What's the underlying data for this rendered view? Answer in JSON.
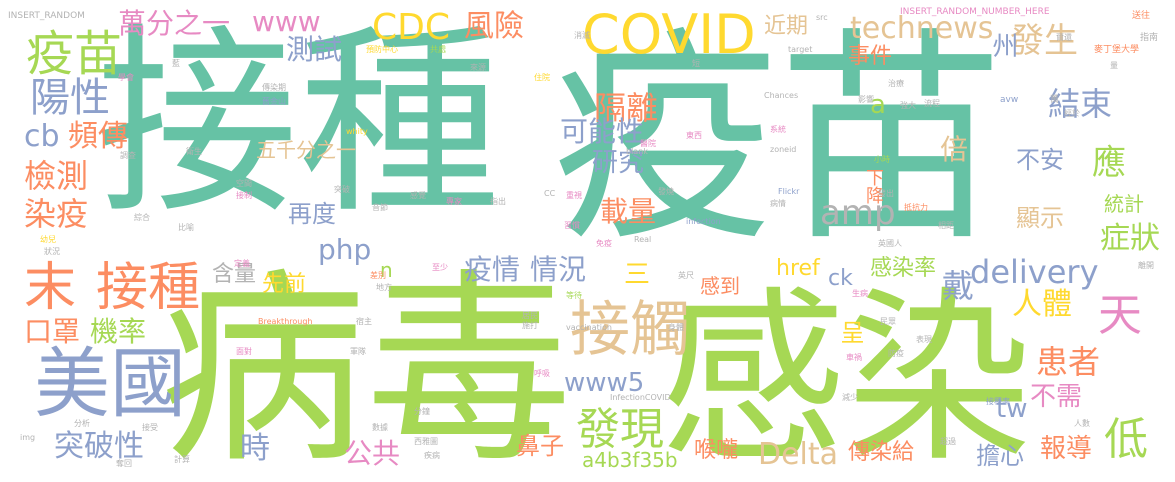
{
  "colors": {
    "teal": "#66c2a5",
    "lime": "#a6d854",
    "orange": "#fc8d62",
    "blue": "#8da0cb",
    "pink": "#e78ac3",
    "yellow": "#ffd92f",
    "tan": "#e5c494",
    "grey": "#b3b3b3"
  },
  "words": [
    {
      "text": "接種",
      "color": "teal"
    },
    {
      "text": "疫苗",
      "color": "teal"
    },
    {
      "text": "病毒",
      "color": "lime"
    },
    {
      "text": "感染",
      "color": "lime"
    },
    {
      "text": "COVID",
      "color": "yellow"
    },
    {
      "text": "美國",
      "color": "blue"
    },
    {
      "text": "末",
      "color": "orange"
    },
    {
      "text": "接種",
      "color": "orange"
    },
    {
      "text": "疫苗",
      "color": "lime"
    },
    {
      "text": "陽性",
      "color": "blue"
    },
    {
      "text": "萬分之一",
      "color": "pink"
    },
    {
      "text": "www",
      "color": "pink"
    },
    {
      "text": "CDC",
      "color": "yellow"
    },
    {
      "text": "風險",
      "color": "orange"
    },
    {
      "text": "technews",
      "color": "tan"
    },
    {
      "text": "近期",
      "color": "tan"
    },
    {
      "text": "發生",
      "color": "tan"
    },
    {
      "text": "事件",
      "color": "orange"
    },
    {
      "text": "州",
      "color": "blue"
    },
    {
      "text": "測試",
      "color": "blue"
    },
    {
      "text": "隔離",
      "color": "orange"
    },
    {
      "text": "a",
      "color": "lime"
    },
    {
      "text": "結束",
      "color": "blue"
    },
    {
      "text": "可能性",
      "color": "blue"
    },
    {
      "text": "cb",
      "color": "blue"
    },
    {
      "text": "頻傳",
      "color": "orange"
    },
    {
      "text": "五千分之一",
      "color": "tan"
    },
    {
      "text": "研究",
      "color": "blue"
    },
    {
      "text": "倍",
      "color": "tan"
    },
    {
      "text": "不安",
      "color": "blue"
    },
    {
      "text": "應",
      "color": "lime"
    },
    {
      "text": "檢測",
      "color": "orange"
    },
    {
      "text": "下降",
      "color": "orange"
    },
    {
      "text": "統計",
      "color": "lime"
    },
    {
      "text": "染疫",
      "color": "orange"
    },
    {
      "text": "再度",
      "color": "blue"
    },
    {
      "text": "載量",
      "color": "orange"
    },
    {
      "text": "amp",
      "color": "grey"
    },
    {
      "text": "顯示",
      "color": "tan"
    },
    {
      "text": "症狀",
      "color": "lime"
    },
    {
      "text": "php",
      "color": "blue"
    },
    {
      "text": "疫情",
      "color": "blue"
    },
    {
      "text": "情況",
      "color": "blue"
    },
    {
      "text": "delivery",
      "color": "blue"
    },
    {
      "text": "戴",
      "color": "blue"
    },
    {
      "text": "三",
      "color": "yellow"
    },
    {
      "text": "天",
      "color": "pink"
    },
    {
      "text": "含量",
      "color": "grey"
    },
    {
      "text": "先前",
      "color": "yellow"
    },
    {
      "text": "n",
      "color": "lime"
    },
    {
      "text": "href",
      "color": "yellow"
    },
    {
      "text": "ck",
      "color": "blue"
    },
    {
      "text": "感染率",
      "color": "lime"
    },
    {
      "text": "人體",
      "color": "yellow"
    },
    {
      "text": "感到",
      "color": "orange"
    },
    {
      "text": "口罩",
      "color": "orange"
    },
    {
      "text": "機率",
      "color": "lime"
    },
    {
      "text": "接觸",
      "color": "tan"
    },
    {
      "text": "呈",
      "color": "yellow"
    },
    {
      "text": "患者",
      "color": "orange"
    },
    {
      "text": "www5",
      "color": "blue"
    },
    {
      "text": "不需",
      "color": "pink"
    },
    {
      "text": "tw",
      "color": "blue"
    },
    {
      "text": "發現",
      "color": "lime"
    },
    {
      "text": "突破性",
      "color": "blue"
    },
    {
      "text": "時",
      "color": "blue"
    },
    {
      "text": "公共",
      "color": "pink"
    },
    {
      "text": "鼻子",
      "color": "orange"
    },
    {
      "text": "a4b3f35b",
      "color": "lime"
    },
    {
      "text": "喉嚨",
      "color": "orange"
    },
    {
      "text": "Delta",
      "color": "tan"
    },
    {
      "text": "傳染給",
      "color": "orange"
    },
    {
      "text": "擔心",
      "color": "blue"
    },
    {
      "text": "報導",
      "color": "orange"
    },
    {
      "text": "低",
      "color": "lime"
    },
    {
      "text": "INSERT_RANDOM",
      "color": "grey"
    },
    {
      "text": "INSERT_RANDOM_NUMBER_HERE",
      "color": "pink"
    },
    {
      "text": "src",
      "color": "grey"
    },
    {
      "text": "送往",
      "color": "orange"
    },
    {
      "text": "指南",
      "color": "grey"
    },
    {
      "text": "預防中心",
      "color": "yellow"
    },
    {
      "text": "共處",
      "color": "lime"
    },
    {
      "text": "消滅",
      "color": "grey"
    },
    {
      "text": "短",
      "color": "grey"
    },
    {
      "text": "target",
      "color": "grey"
    },
    {
      "text": "學會",
      "color": "pink"
    },
    {
      "text": "藍",
      "color": "grey"
    },
    {
      "text": "傳染期",
      "color": "grey"
    },
    {
      "text": "住院",
      "color": "yellow"
    },
    {
      "text": "來源",
      "color": "grey"
    },
    {
      "text": "Chances",
      "color": "grey"
    },
    {
      "text": "影響",
      "color": "grey"
    },
    {
      "text": "avw",
      "color": "blue"
    },
    {
      "text": "萬",
      "color": "grey"
    },
    {
      "text": "麥丁堡大學",
      "color": "orange"
    },
    {
      "text": "量",
      "color": "grey"
    },
    {
      "text": "爾還",
      "color": "grey"
    },
    {
      "text": "治療",
      "color": "grey"
    },
    {
      "text": "舊金山",
      "color": "blue"
    },
    {
      "text": "whity",
      "color": "yellow"
    },
    {
      "text": "流程",
      "color": "grey"
    },
    {
      "text": "強大",
      "color": "grey"
    },
    {
      "text": "經於",
      "color": "grey"
    },
    {
      "text": "blank",
      "color": "grey"
    },
    {
      "text": "醫院",
      "color": "pink"
    },
    {
      "text": "東西",
      "color": "pink"
    },
    {
      "text": "系統",
      "color": "pink"
    },
    {
      "text": "zoneid",
      "color": "grey"
    },
    {
      "text": "Flickr",
      "color": "blue"
    },
    {
      "text": "調查",
      "color": "grey"
    },
    {
      "text": "衛生",
      "color": "grey"
    },
    {
      "text": "小時",
      "color": "lime"
    },
    {
      "text": "發出",
      "color": "grey"
    },
    {
      "text": "空間",
      "color": "grey"
    },
    {
      "text": "突破",
      "color": "grey"
    },
    {
      "text": "專家",
      "color": "pink"
    },
    {
      "text": "指出",
      "color": "grey"
    },
    {
      "text": "CC",
      "color": "grey"
    },
    {
      "text": "重視",
      "color": "pink"
    },
    {
      "text": "發燒",
      "color": "grey"
    },
    {
      "text": "感覺",
      "color": "grey"
    },
    {
      "text": "病情",
      "color": "grey"
    },
    {
      "text": "抵抗力",
      "color": "orange"
    },
    {
      "text": "接制",
      "color": "pink"
    },
    {
      "text": "音節",
      "color": "grey"
    },
    {
      "text": "綜合",
      "color": "grey"
    },
    {
      "text": "比喻",
      "color": "grey"
    },
    {
      "text": "習慣",
      "color": "pink"
    },
    {
      "text": "infection",
      "color": "blue"
    },
    {
      "text": "相距",
      "color": "grey"
    },
    {
      "text": "幼兒",
      "color": "yellow"
    },
    {
      "text": "狀況",
      "color": "grey"
    },
    {
      "text": "免疫",
      "color": "pink"
    },
    {
      "text": "Real",
      "color": "grey"
    },
    {
      "text": "英國人",
      "color": "grey"
    },
    {
      "text": "離開",
      "color": "grey"
    },
    {
      "text": "定義",
      "color": "pink"
    },
    {
      "text": "差別",
      "color": "orange"
    },
    {
      "text": "至少",
      "color": "pink"
    },
    {
      "text": "英尺",
      "color": "grey"
    },
    {
      "text": "地方",
      "color": "grey"
    },
    {
      "text": "等待",
      "color": "lime"
    },
    {
      "text": "vaccination",
      "color": "grey"
    },
    {
      "text": "身體",
      "color": "grey"
    },
    {
      "text": "生病",
      "color": "pink"
    },
    {
      "text": "Breakthrough",
      "color": "orange"
    },
    {
      "text": "宿主",
      "color": "grey"
    },
    {
      "text": "居民",
      "color": "grey"
    },
    {
      "text": "施打",
      "color": "grey"
    },
    {
      "text": "民眾",
      "color": "grey"
    },
    {
      "text": "面對",
      "color": "pink"
    },
    {
      "text": "軍隊",
      "color": "grey"
    },
    {
      "text": "呼吸",
      "color": "pink"
    },
    {
      "text": "車禍",
      "color": "pink"
    },
    {
      "text": "防疫",
      "color": "grey"
    },
    {
      "text": "表現",
      "color": "grey"
    },
    {
      "text": "分析",
      "color": "grey"
    },
    {
      "text": "InfectionCOVID",
      "color": "grey"
    },
    {
      "text": "減少",
      "color": "grey"
    },
    {
      "text": "分鐘",
      "color": "grey"
    },
    {
      "text": "接受",
      "color": "grey"
    },
    {
      "text": "數據",
      "color": "grey"
    },
    {
      "text": "接種率",
      "color": "blue"
    },
    {
      "text": "人數",
      "color": "grey"
    },
    {
      "text": "img",
      "color": "grey"
    },
    {
      "text": "西雅圖",
      "color": "grey"
    },
    {
      "text": "計算",
      "color": "grey"
    },
    {
      "text": "疾病",
      "color": "grey"
    },
    {
      "text": "超過",
      "color": "grey"
    },
    {
      "text": "奪回",
      "color": "grey"
    }
  ]
}
